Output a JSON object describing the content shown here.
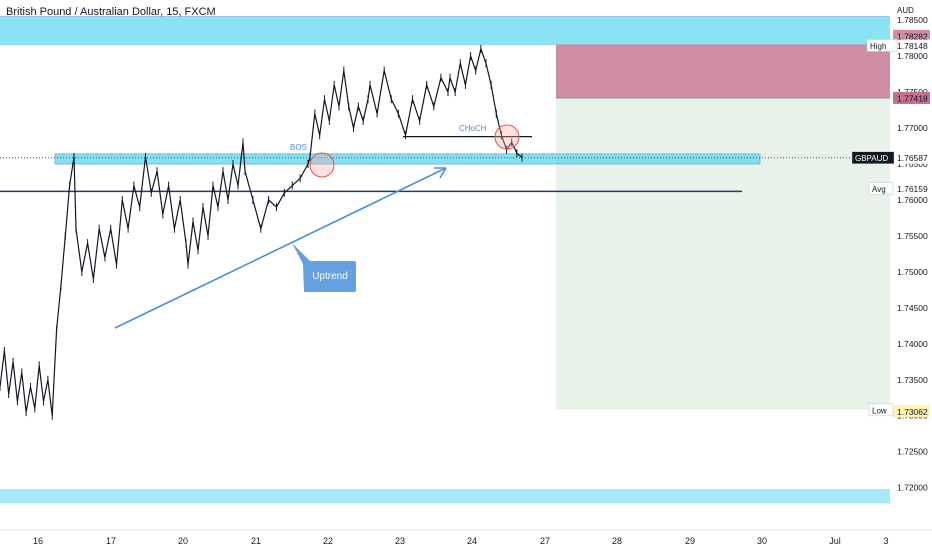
{
  "header": {
    "title": "British Pound / Australian Dollar, 15, FXCM"
  },
  "chart_data": {
    "type": "line",
    "symbol": "GBPAUD",
    "currency": "AUD",
    "x_ticks": [
      "16",
      "17",
      "20",
      "21",
      "22",
      "23",
      "24",
      "27",
      "28",
      "29",
      "30",
      "Jul",
      "3"
    ],
    "y_ticks": [
      1.72,
      1.725,
      1.73,
      1.735,
      1.74,
      1.745,
      1.75,
      1.755,
      1.76,
      1.765,
      1.77,
      1.775,
      1.78,
      1.785
    ],
    "y_tick_labels": [
      "1.72000",
      "1.72500",
      "1.73000",
      "1.73500",
      "1.74000",
      "1.74500",
      "1.75000",
      "1.75500",
      "1.76000",
      "1.76500",
      "1.77000",
      "1.77500",
      "1.78000",
      "1.78500"
    ],
    "ylim": [
      1.7155,
      1.7878
    ],
    "series": [
      {
        "values": [
          [
            "16",
            1.734
          ],
          [
            "16",
            1.739
          ],
          [
            "16",
            1.733
          ],
          [
            "16",
            1.7375
          ],
          [
            "16",
            1.732
          ],
          [
            "16",
            1.736
          ],
          [
            "16",
            1.7305
          ],
          [
            "16",
            1.734
          ],
          [
            "16",
            1.731
          ],
          [
            "16",
            1.737
          ],
          [
            "16",
            1.732
          ],
          [
            "16",
            1.735
          ],
          [
            "16",
            1.73
          ],
          [
            "16",
            1.742
          ],
          [
            "16",
            1.748
          ],
          [
            "16",
            1.755
          ],
          [
            "16",
            1.762
          ],
          [
            "16",
            1.766
          ],
          [
            "17",
            1.756
          ],
          [
            "17",
            1.75
          ],
          [
            "17",
            1.754
          ],
          [
            "17",
            1.749
          ],
          [
            "17",
            1.756
          ],
          [
            "17",
            1.752
          ],
          [
            "17",
            1.756
          ],
          [
            "17",
            1.751
          ],
          [
            "17",
            1.76
          ],
          [
            "17",
            1.756
          ],
          [
            "17",
            1.762
          ],
          [
            "17",
            1.759
          ],
          [
            "17",
            1.766
          ],
          [
            "17",
            1.761
          ],
          [
            "17",
            1.764
          ],
          [
            "17",
            1.758
          ],
          [
            "17",
            1.762
          ],
          [
            "17",
            1.756
          ],
          [
            "17",
            1.76
          ],
          [
            "17",
            1.754
          ],
          [
            "20",
            1.751
          ],
          [
            "20",
            1.757
          ],
          [
            "20",
            1.753
          ],
          [
            "20",
            1.759
          ],
          [
            "20",
            1.755
          ],
          [
            "20",
            1.762
          ],
          [
            "20",
            1.759
          ],
          [
            "20",
            1.764
          ],
          [
            "20",
            1.76
          ],
          [
            "20",
            1.765
          ],
          [
            "20",
            1.762
          ],
          [
            "20",
            1.768
          ],
          [
            "21",
            1.764
          ],
          [
            "21",
            1.76
          ],
          [
            "21",
            1.756
          ],
          [
            "21",
            1.76
          ],
          [
            "21",
            1.759
          ],
          [
            "21",
            1.761
          ],
          [
            "21",
            1.762
          ],
          [
            "21",
            1.763
          ],
          [
            "21",
            1.765
          ],
          [
            "22",
            1.766
          ],
          [
            "22",
            1.772
          ],
          [
            "22",
            1.769
          ],
          [
            "22",
            1.774
          ],
          [
            "22",
            1.771
          ],
          [
            "22",
            1.776
          ],
          [
            "22",
            1.773
          ],
          [
            "22",
            1.778
          ],
          [
            "22",
            1.773
          ],
          [
            "22",
            1.77
          ],
          [
            "22",
            1.773
          ],
          [
            "22",
            1.771
          ],
          [
            "22",
            1.774
          ],
          [
            "23",
            1.776
          ],
          [
            "23",
            1.772
          ],
          [
            "23",
            1.778
          ],
          [
            "23",
            1.774
          ],
          [
            "23",
            1.772
          ],
          [
            "23",
            1.769
          ],
          [
            "23",
            1.774
          ],
          [
            "23",
            1.771
          ],
          [
            "23",
            1.776
          ],
          [
            "23",
            1.773
          ],
          [
            "23",
            1.777
          ],
          [
            "23",
            1.775
          ],
          [
            "24",
            1.777
          ],
          [
            "24",
            1.775
          ],
          [
            "24",
            1.779
          ],
          [
            "24",
            1.776
          ],
          [
            "24",
            1.78
          ],
          [
            "24",
            1.778
          ],
          [
            "24",
            1.781
          ],
          [
            "24",
            1.779
          ],
          [
            "24",
            1.776
          ],
          [
            "24",
            1.772
          ],
          [
            "24",
            1.769
          ],
          [
            "24",
            1.767
          ],
          [
            "24",
            1.768
          ],
          [
            "24",
            1.7665
          ],
          [
            "24",
            1.7659
          ]
        ]
      }
    ],
    "price_labels": {
      "top": "1.78282",
      "high_label": "High",
      "high": "1.78148",
      "stop": "1.77418",
      "current_symbol": "GBPAUD",
      "current": "1.76587",
      "avg_label": "Avg",
      "avg": "1.76159",
      "low_label": "Low",
      "low": "1.73082",
      "target": "1.73062"
    },
    "price_levels": {
      "top": 1.78282,
      "high": 1.78148,
      "stop": 1.77418,
      "current": 1.76587,
      "avg": 1.76159,
      "low": 1.73082,
      "target": 1.73062,
      "zone_top": [
        1.7855,
        1.7816
      ],
      "zone_mid": [
        1.7664,
        1.765
      ],
      "zone_bottom": [
        1.7198,
        1.7178
      ],
      "choch_line": 1.7688,
      "avg_line": 1.7612
    },
    "annotations": {
      "bos": "BOS",
      "choch": "CHoCH",
      "uptrend": "Uptrend"
    },
    "colors": {
      "candle": "#131722",
      "zone": "#59d7ec",
      "trend": "#4a8fdc",
      "stop_zone": "#c2708f",
      "target_zone": "#c7dfc9",
      "avg_line": "#1f3a7a",
      "circle": "#e9504a"
    }
  }
}
